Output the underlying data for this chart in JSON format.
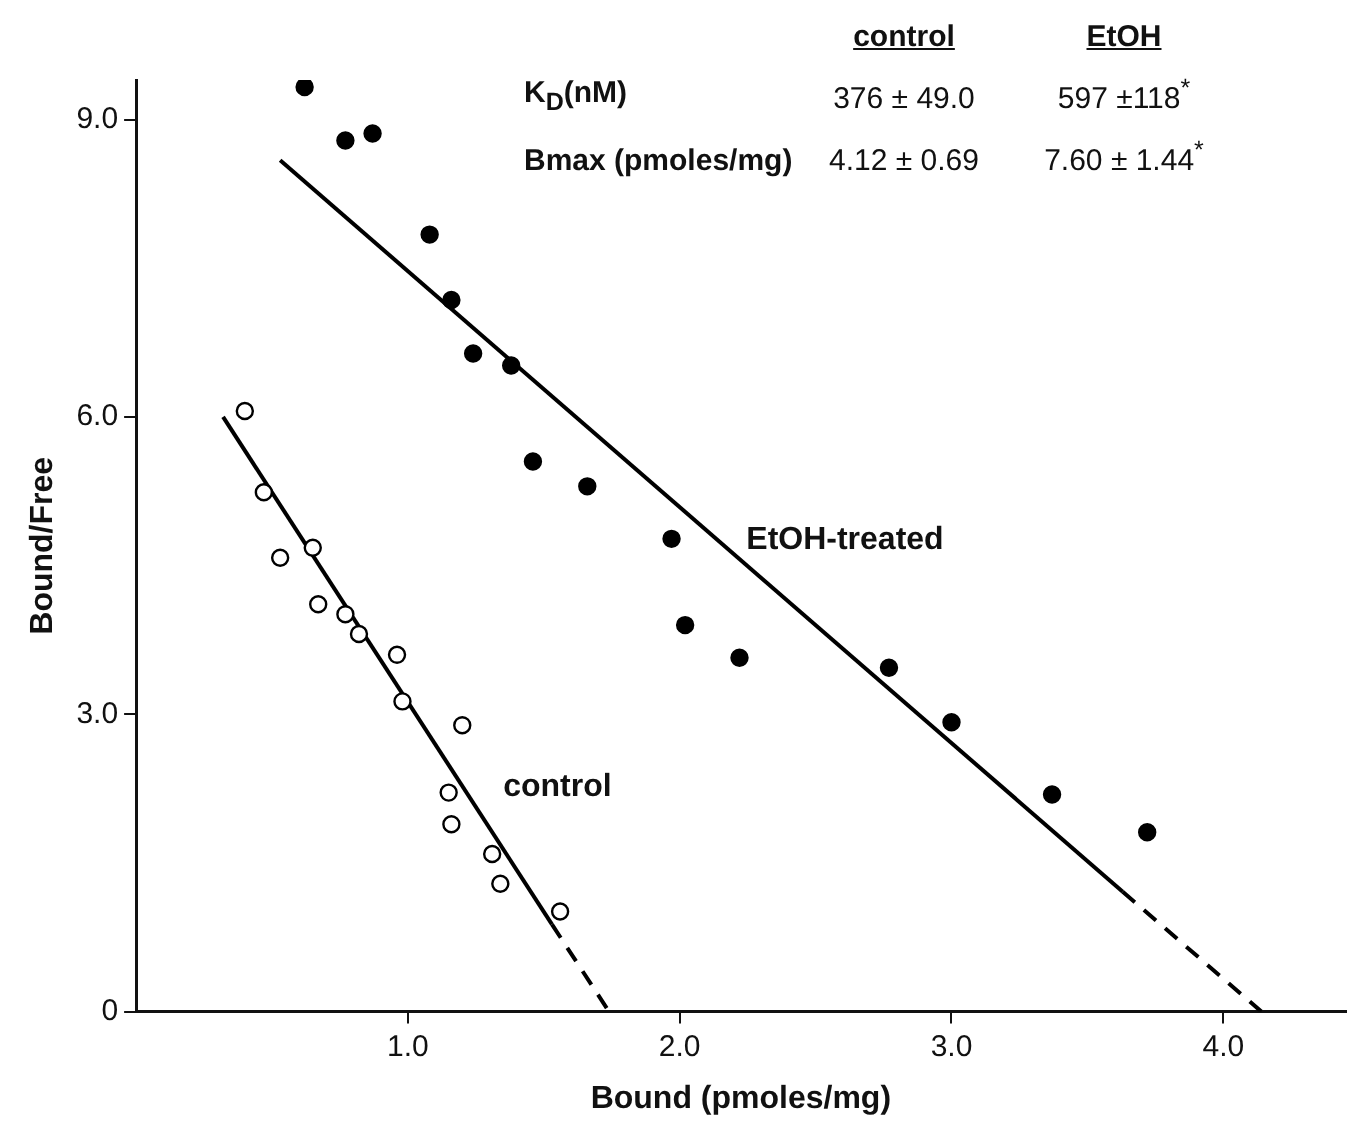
{
  "chart_data": {
    "type": "scatter",
    "xlabel": "Bound (pmoles/mg)",
    "ylabel": "Bound/Free",
    "xlim": [
      0,
      4.45
    ],
    "ylim": [
      0,
      9.4
    ],
    "xticks": [
      {
        "value": 1,
        "label": "1.0"
      },
      {
        "value": 2,
        "label": "2.0"
      },
      {
        "value": 3,
        "label": "3.0"
      },
      {
        "value": 4,
        "label": "4.0"
      }
    ],
    "yticks": [
      0,
      {
        "value": 3,
        "label": "3.0"
      },
      {
        "value": 6,
        "label": "6.0"
      },
      {
        "value": 9,
        "label": "9.0"
      }
    ],
    "grid": false,
    "legend": false,
    "marker": "circle",
    "series": [
      {
        "color": "#000000",
        "x": [
          0.62,
          0.77,
          0.87,
          1.08,
          1.16,
          1.24,
          1.38,
          1.46,
          1.66,
          1.97,
          2.02,
          2.22,
          2.77,
          3.0,
          3.37,
          3.72
        ],
        "values": [
          9.33,
          8.79,
          8.86,
          7.84,
          7.18,
          6.64,
          6.52,
          5.55,
          5.3,
          4.77,
          3.9,
          3.57,
          3.47,
          2.92,
          2.19,
          1.81
        ]
      },
      {
        "color": "#ffffff",
        "x": [
          0.4,
          0.47,
          0.53,
          0.65,
          0.67,
          0.77,
          0.82,
          0.96,
          0.98,
          1.2,
          1.15,
          1.16,
          1.31,
          1.34,
          1.56
        ],
        "values": [
          6.06,
          5.24,
          4.58,
          4.68,
          4.11,
          4.01,
          3.81,
          3.6,
          3.13,
          2.89,
          2.21,
          1.89,
          1.59,
          1.29,
          1.01
        ]
      },
      {
        "type": "line",
        "name": "EtOH-treated",
        "color": "#000000",
        "marker": "none",
        "line_style": "solid",
        "x": [
          0.53,
          3.63
        ],
        "values": [
          8.59,
          1.21
        ]
      },
      {
        "type": "line",
        "color": "#000000",
        "marker": "none",
        "line_style": "dashed",
        "x": [
          3.63,
          4.14
        ],
        "values": [
          1.21,
          0
        ]
      },
      {
        "type": "line",
        "name": "control",
        "color": "#000000",
        "marker": "none",
        "line_style": "solid",
        "x": [
          0.32,
          1.53
        ],
        "values": [
          6.0,
          0.88
        ]
      },
      {
        "type": "line",
        "color": "#000000",
        "marker": "none",
        "line_style": "dashed",
        "x": [
          1.53,
          1.74
        ],
        "values": [
          0.88,
          0
        ]
      }
    ],
    "annotations": [
      "control",
      "EtOH",
      "K$_{D}$(nM)",
      "376 ± 49.0",
      "597 ±118$^{*}$",
      "Bmax (pmoles/mg)",
      "4.12 ± 0.69",
      "7.60 ± 1.44$^{*}$"
    ]
  }
}
